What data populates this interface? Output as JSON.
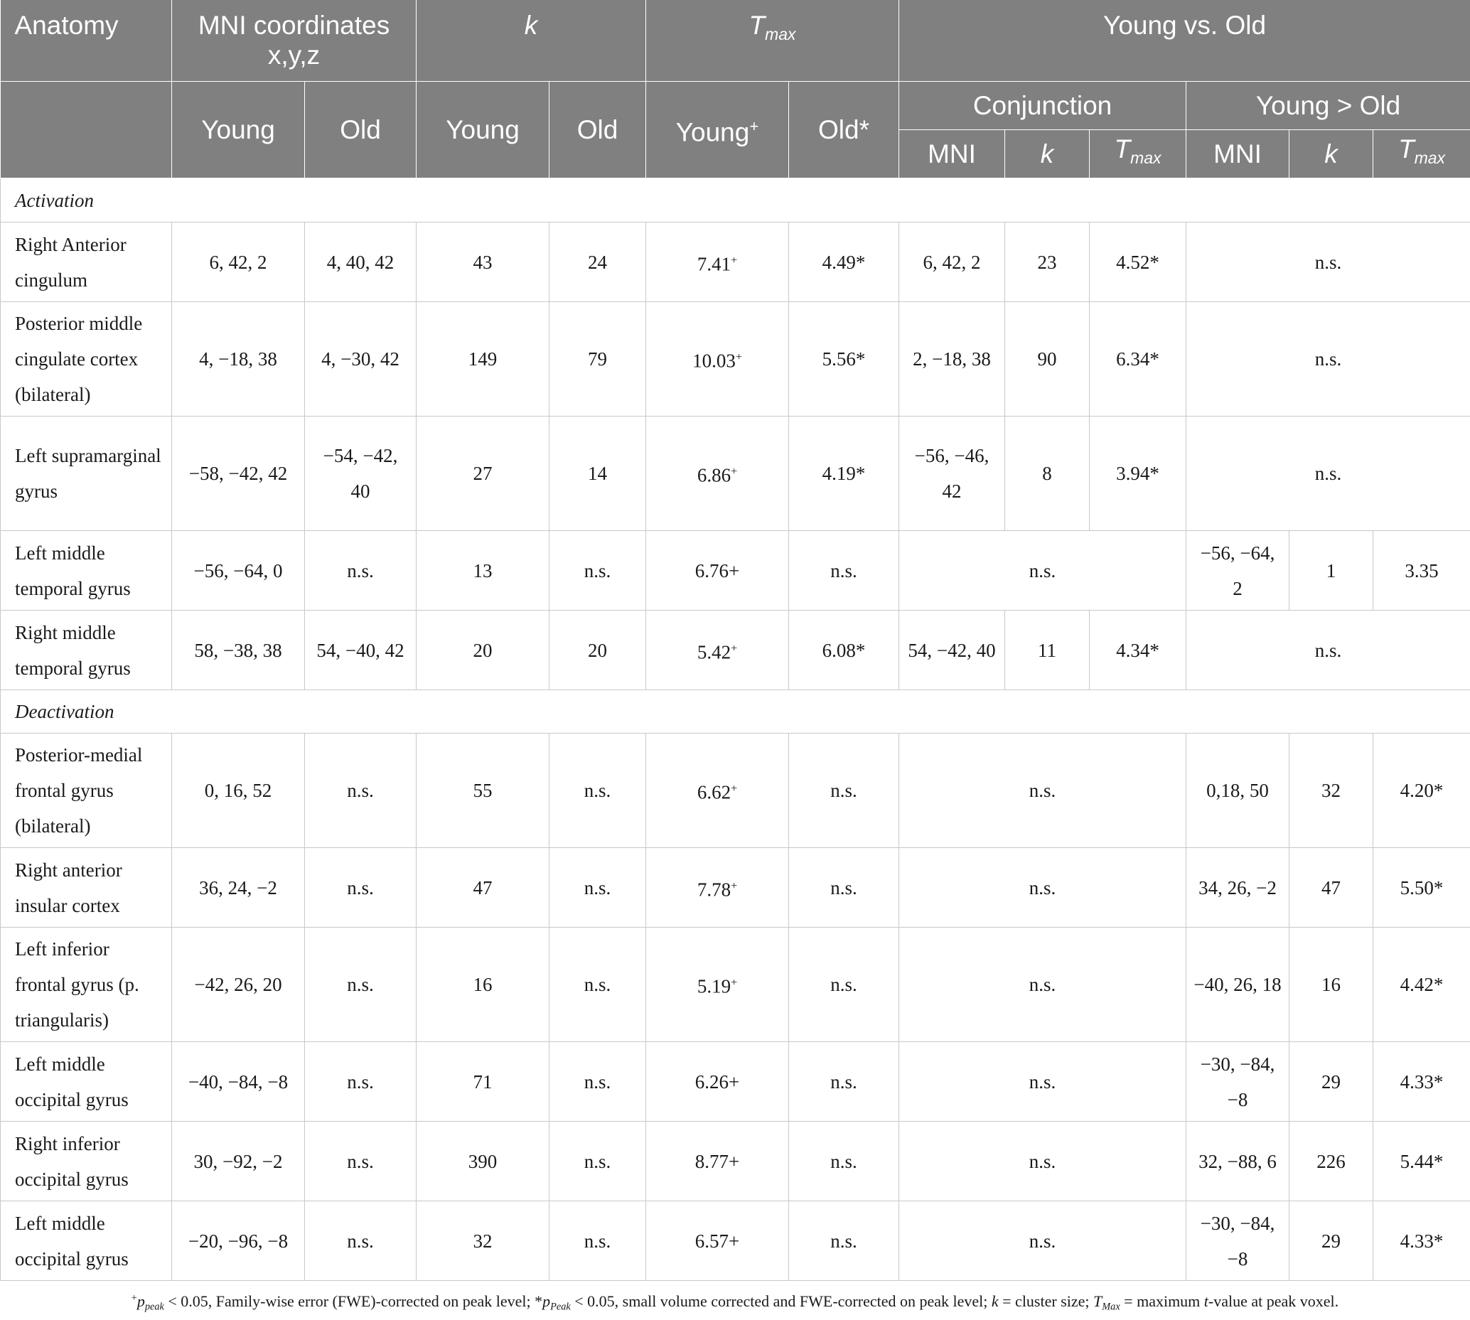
{
  "header": {
    "anatomy": "Anatomy",
    "mni": "MNI coordinates x,y,z",
    "k": "k",
    "t": "T",
    "t_sub": "max",
    "young_vs_old": "Young vs. Old",
    "young": "Young",
    "old": "Old",
    "young_plus": "Young",
    "plus_mark": "+",
    "old_star": "Old*",
    "conjunction": "Conjunction",
    "young_gt_old": "Young > Old",
    "mni_short": "MNI"
  },
  "sections": {
    "activation": "Activation",
    "deactivation": "Deactivation"
  },
  "rows": [
    {
      "name": "Right Anterior cingulum",
      "mni_young": "6, 42, 2",
      "mni_old": "4, 40, 42",
      "k_young": "43",
      "k_old": "24",
      "t_young": "7.41",
      "t_young_mark": "+",
      "t_old": "4.49*",
      "conj_mni": "6, 42, 2",
      "conj_k": "23",
      "conj_t": "4.52*",
      "yo_ns": "n.s."
    },
    {
      "name": "Posterior middle cingulate cortex (bilateral)",
      "mni_young": "4, −18, 38",
      "mni_old": "4, −30, 42",
      "k_young": "149",
      "k_old": "79",
      "t_young": "10.03",
      "t_young_mark": "+",
      "t_old": "5.56*",
      "conj_mni": "2, −18, 38",
      "conj_k": "90",
      "conj_t": "6.34*",
      "yo_ns": "n.s."
    },
    {
      "name": "Left supramarginal gyrus",
      "mni_young": "−58, −42, 42",
      "mni_old": "−54, −42, 40",
      "k_young": "27",
      "k_old": "14",
      "t_young": "6.86",
      "t_young_mark": "+",
      "t_old": "4.19*",
      "conj_mni": "−56, −46, 42",
      "conj_k": "8",
      "conj_t": "3.94*",
      "yo_ns": "n.s."
    },
    {
      "name": "Left middle temporal gyrus",
      "mni_young": "−56, −64, 0",
      "mni_old": "n.s.",
      "k_young": "13",
      "k_old": "n.s.",
      "t_young": "6.76+",
      "t_old": "n.s.",
      "conj_ns": "n.s.",
      "yo_mni": "−56, −64, 2",
      "yo_k": "1",
      "yo_t": "3.35"
    },
    {
      "name": "Right middle temporal gyrus",
      "mni_young": "58, −38, 38",
      "mni_old": "54, −40, 42",
      "k_young": "20",
      "k_old": "20",
      "t_young": "5.42",
      "t_young_mark": "+",
      "t_old": "6.08*",
      "conj_mni": "54, −42, 40",
      "conj_k": "11",
      "conj_t": "4.34*",
      "yo_ns": "n.s."
    },
    {
      "name": "Posterior-medial frontal gyrus (bilateral)",
      "mni_young": "0, 16, 52",
      "mni_old": "n.s.",
      "k_young": "55",
      "k_old": "n.s.",
      "t_young": "6.62",
      "t_young_mark": "+",
      "t_old": "n.s.",
      "conj_ns": "n.s.",
      "yo_mni": "0,18, 50",
      "yo_k": "32",
      "yo_t": "4.20*"
    },
    {
      "name": "Right anterior insular cortex",
      "mni_young": "36, 24, −2",
      "mni_old": "n.s.",
      "k_young": "47",
      "k_old": "n.s.",
      "t_young": "7.78",
      "t_young_mark": "+",
      "t_old": "n.s.",
      "conj_ns": "n.s.",
      "yo_mni": "34, 26, −2",
      "yo_k": "47",
      "yo_t": "5.50*"
    },
    {
      "name": "Left inferior frontal gyrus (p. triangularis)",
      "mni_young": "−42, 26, 20",
      "mni_old": "n.s.",
      "k_young": "16",
      "k_old": "n.s.",
      "t_young": "5.19",
      "t_young_mark": "+",
      "t_old": "n.s.",
      "conj_ns": "n.s.",
      "yo_mni": "−40, 26, 18",
      "yo_k": "16",
      "yo_t": "4.42*"
    },
    {
      "name": "Left middle occipital gyrus",
      "mni_young": "−40, −84, −8",
      "mni_old": "n.s.",
      "k_young": "71",
      "k_old": "n.s.",
      "t_young": "6.26+",
      "t_old": "n.s.",
      "conj_ns": "n.s.",
      "yo_mni": "−30, −84, −8",
      "yo_k": "29",
      "yo_t": "4.33*"
    },
    {
      "name": "Right inferior occipital gyrus",
      "mni_young": "30, −92, −2",
      "mni_old": "n.s.",
      "k_young": "390",
      "k_old": "n.s.",
      "t_young": "8.77+",
      "t_old": "n.s.",
      "conj_ns": "n.s.",
      "yo_mni": "32, −88, 6",
      "yo_k": "226",
      "yo_t": "5.44*"
    },
    {
      "name": "Left middle occipital gyrus",
      "mni_young": "−20, −96, −8",
      "mni_old": "n.s.",
      "k_young": "32",
      "k_old": "n.s.",
      "t_young": "6.57+",
      "t_old": "n.s.",
      "conj_ns": "n.s.",
      "yo_mni": "−30, −84, −8",
      "yo_k": "29",
      "yo_t": "4.33*"
    }
  ],
  "footnote": {
    "plus": "+",
    "p": "p",
    "peak_sub": "peak",
    "part1": " < 0.05, Family-wise error (FWE)-corrected on peak level; *",
    "peak_sub2": "Peak",
    "part2": " < 0.05, small volume corrected and FWE-corrected on peak level; ",
    "k": "k",
    "part3": " = cluster size; ",
    "T": "T",
    "max_sub": "Max",
    "part4": " = maximum ",
    "t": "t",
    "part5": "-value at peak voxel."
  },
  "colors": {
    "header_bg": "#808080",
    "header_text": "#ffffff",
    "grid": "#c8c8c8"
  }
}
